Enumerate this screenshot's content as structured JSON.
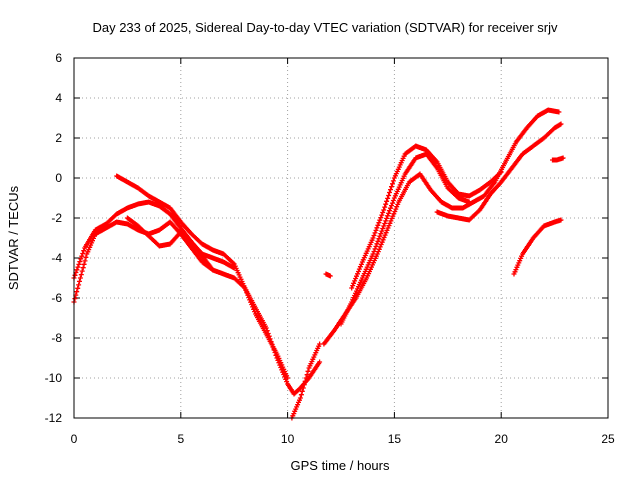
{
  "chart_data": {
    "type": "scatter",
    "title": "Day 233 of 2025, Sidereal Day-to-day VTEC variation (SDTVAR) for receiver srjv",
    "xlabel": "GPS time / hours",
    "ylabel": "SDTVAR / TECUs",
    "xlim": [
      0,
      25
    ],
    "ylim": [
      -12,
      6
    ],
    "xticks": [
      0,
      5,
      10,
      15,
      20,
      25
    ],
    "yticks": [
      -12,
      -10,
      -8,
      -6,
      -4,
      -2,
      0,
      2,
      4,
      6
    ],
    "grid": true,
    "marker": "+",
    "color": "#ff0000",
    "series": [
      {
        "name": "trace-1",
        "x": [
          0.0,
          0.3,
          0.6,
          1.0,
          1.5,
          2.0,
          2.5,
          3.0,
          3.5,
          4.0,
          4.5,
          5.0,
          5.5,
          6.0,
          6.5,
          7.0,
          7.5,
          8.0,
          8.5,
          9.0,
          9.5,
          10.0,
          10.3,
          10.6,
          11.0,
          11.5
        ],
        "y": [
          -6.2,
          -5.0,
          -3.8,
          -2.8,
          -2.5,
          -2.2,
          -2.3,
          -2.6,
          -2.8,
          -2.6,
          -2.2,
          -2.8,
          -3.5,
          -4.2,
          -4.6,
          -4.8,
          -5.0,
          -5.5,
          -6.5,
          -7.5,
          -9.0,
          -10.3,
          -10.8,
          -10.5,
          -10.0,
          -9.2
        ]
      },
      {
        "name": "trace-2",
        "x": [
          0.0,
          0.5,
          1.0,
          1.5,
          2.0,
          2.5,
          3.0,
          3.5,
          4.0,
          4.5,
          5.0,
          5.5,
          6.0,
          6.5,
          7.0,
          7.5
        ],
        "y": [
          -5.0,
          -3.5,
          -2.6,
          -2.3,
          -1.8,
          -1.5,
          -1.3,
          -1.2,
          -1.4,
          -1.8,
          -2.5,
          -3.2,
          -3.8,
          -4.0,
          -4.2,
          -4.5
        ]
      },
      {
        "name": "trace-3",
        "x": [
          2.0,
          2.5,
          3.0,
          3.5,
          4.0,
          4.5,
          5.0,
          5.5,
          6.0,
          6.5,
          7.0,
          7.5,
          8.0,
          8.5,
          9.0,
          9.5,
          10.0
        ],
        "y": [
          0.1,
          -0.2,
          -0.5,
          -0.9,
          -1.2,
          -1.5,
          -2.2,
          -2.8,
          -3.3,
          -3.6,
          -3.8,
          -4.3,
          -5.5,
          -6.8,
          -7.8,
          -8.8,
          -10.0
        ]
      },
      {
        "name": "trace-4",
        "x": [
          2.5,
          3.0,
          3.5,
          4.0,
          4.5,
          5.0,
          5.5,
          6.0,
          6.5
        ],
        "y": [
          -2.0,
          -2.4,
          -2.9,
          -3.4,
          -3.3,
          -2.7,
          -3.2,
          -3.9,
          -4.6
        ]
      },
      {
        "name": "trace-5",
        "x": [
          10.2,
          10.6,
          11.0,
          11.5
        ],
        "y": [
          -12.0,
          -11.0,
          -9.5,
          -8.3
        ]
      },
      {
        "name": "trace-6",
        "x": [
          11.7,
          12.2,
          12.7,
          13.2,
          13.7,
          14.2,
          14.7,
          15.2,
          15.7,
          16.2,
          16.7,
          17.2,
          17.7,
          18.2,
          18.7,
          19.2,
          19.7,
          20.2,
          20.7,
          21.2,
          21.7,
          22.2,
          22.7
        ],
        "y": [
          -8.3,
          -7.6,
          -6.8,
          -6.0,
          -5.0,
          -3.8,
          -2.5,
          -1.2,
          -0.2,
          0.2,
          -0.6,
          -1.2,
          -1.5,
          -1.5,
          -1.2,
          -0.9,
          -0.2,
          0.8,
          1.8,
          2.5,
          3.1,
          3.4,
          3.3
        ]
      },
      {
        "name": "trace-7",
        "x": [
          12.5,
          13.0,
          13.5,
          14.0,
          14.5,
          15.0,
          15.5,
          16.0,
          16.5,
          17.0,
          17.5,
          18.0,
          18.5
        ],
        "y": [
          -7.3,
          -6.2,
          -5.0,
          -3.8,
          -2.4,
          -1.0,
          0.2,
          1.0,
          1.2,
          0.5,
          -0.5,
          -1.0,
          -1.2
        ]
      },
      {
        "name": "trace-8",
        "x": [
          13.0,
          13.5,
          14.0,
          14.5,
          15.0,
          15.5,
          16.0,
          16.5,
          17.0,
          17.5,
          18.0,
          18.5,
          19.0,
          19.5,
          20.0
        ],
        "y": [
          -5.5,
          -4.2,
          -3.0,
          -1.6,
          0.0,
          1.2,
          1.6,
          1.4,
          0.8,
          -0.2,
          -0.8,
          -0.9,
          -0.6,
          -0.2,
          0.3
        ]
      },
      {
        "name": "trace-9",
        "x": [
          17.0,
          17.5,
          18.0,
          18.5,
          19.0,
          19.5,
          20.0,
          20.5,
          21.0,
          21.5,
          22.0,
          22.5,
          22.8
        ],
        "y": [
          -1.7,
          -1.9,
          -2.0,
          -2.1,
          -1.6,
          -0.8,
          -0.2,
          0.5,
          1.2,
          1.6,
          2.0,
          2.5,
          2.7
        ]
      },
      {
        "name": "trace-10",
        "x": [
          20.6,
          21.0,
          21.5,
          22.0,
          22.5,
          22.8
        ],
        "y": [
          -4.8,
          -3.8,
          -3.0,
          -2.4,
          -2.2,
          -2.1
        ]
      },
      {
        "name": "trace-11",
        "x": [
          22.4,
          22.6,
          22.9
        ],
        "y": [
          0.9,
          0.9,
          1.0
        ]
      },
      {
        "name": "trace-12",
        "x": [
          11.8,
          12.0
        ],
        "y": [
          -4.8,
          -4.9
        ]
      }
    ]
  }
}
